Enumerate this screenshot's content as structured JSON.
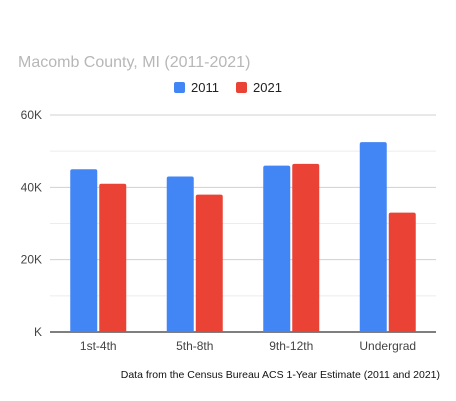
{
  "chart_data": {
    "type": "bar",
    "title": "Macomb County, MI (2011-2021)",
    "categories": [
      "1st-4th",
      "5th-8th",
      "9th-12th",
      "Undergrad"
    ],
    "series": [
      {
        "name": "2011",
        "color": "#4285f4",
        "values": [
          45000,
          43000,
          46000,
          52500
        ]
      },
      {
        "name": "2021",
        "color": "#ea4335",
        "values": [
          41000,
          38000,
          46500,
          33000
        ]
      }
    ],
    "ylim": [
      0,
      60000
    ],
    "yticks": [
      0,
      20000,
      40000,
      60000
    ],
    "ytick_labels": [
      "K",
      "20K",
      "40K",
      "60K"
    ],
    "grid": true,
    "legend_position": "top",
    "source_note": "Data from the Census Bureau ACS 1-Year Estimate (2011 and 2021)"
  }
}
